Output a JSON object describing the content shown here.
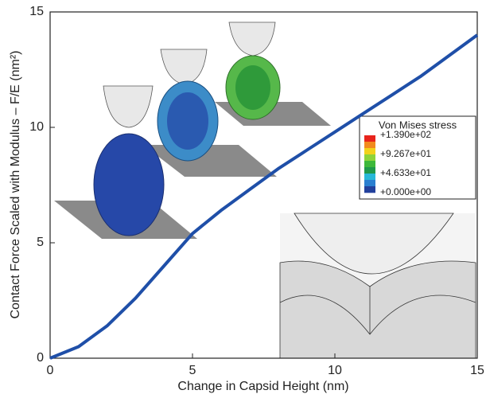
{
  "chart_data": {
    "type": "line",
    "x_label": "Change in Capsid Height (nm)",
    "y_label": "Contact Force Scaled with Modulus – F/E (nm²)",
    "xlim": [
      0,
      15
    ],
    "ylim": [
      0,
      15
    ],
    "xticks": [
      0,
      5,
      10,
      15
    ],
    "yticks": [
      0,
      5,
      10,
      15
    ],
    "series": [
      {
        "color": "#1f4fa8",
        "x": [
          0,
          1,
          2,
          3,
          4,
          5,
          6,
          7,
          8,
          9,
          10,
          11,
          12,
          13,
          14,
          15
        ],
        "values": [
          0,
          0.5,
          1.4,
          2.6,
          4.0,
          5.4,
          6.4,
          7.3,
          8.2,
          9.0,
          9.8,
          10.6,
          11.4,
          12.2,
          13.1,
          14.0
        ]
      }
    ],
    "colorbar": {
      "title": "Von Mises stress",
      "labels": [
        "+1.390e+02",
        "+9.267e+01",
        "+4.633e+01",
        "+0.000e+00"
      ],
      "colors": [
        "#e8241c",
        "#f28a1e",
        "#f2d21c",
        "#8ed43a",
        "#3db83a",
        "#1f9a4a",
        "#27b8d8",
        "#2a7fd0",
        "#22409c"
      ]
    }
  }
}
